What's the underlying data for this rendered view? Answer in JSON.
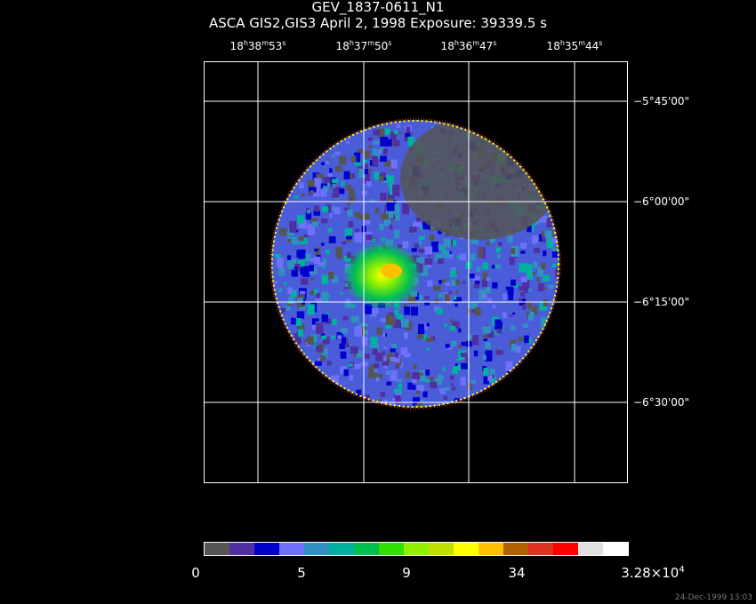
{
  "title": "GEV_1837-0611_N1",
  "subtitle": "ASCA GIS2,GIS3 April 2, 1998 Exposure: 39339.5 s",
  "ra_labels": [
    {
      "h": "18",
      "m": "38",
      "s": "53"
    },
    {
      "h": "18",
      "m": "37",
      "s": "50"
    },
    {
      "h": "18",
      "m": "36",
      "s": "47"
    },
    {
      "h": "18",
      "m": "35",
      "s": "44"
    }
  ],
  "dec_labels": [
    "−5°45'00\"",
    "−6°00'00\"",
    "−6°15'00\"",
    "−6°30'00\""
  ],
  "colorbar": {
    "colors": [
      "#555555",
      "#5030a0",
      "#0000cc",
      "#7070ff",
      "#3090c0",
      "#00b0a0",
      "#00c050",
      "#30e000",
      "#90f000",
      "#c0e000",
      "#ffff00",
      "#ffc000",
      "#b06000",
      "#e03020",
      "#ff0000",
      "#e0e0e0",
      "#ffffff"
    ],
    "labels": [
      {
        "text": "0"
      },
      {
        "text": "5"
      },
      {
        "text": "9"
      },
      {
        "text": "34"
      },
      {
        "text": "3.28×10",
        "sup": "4"
      }
    ]
  },
  "timestamp": "24-Dec-1999 13:03"
}
